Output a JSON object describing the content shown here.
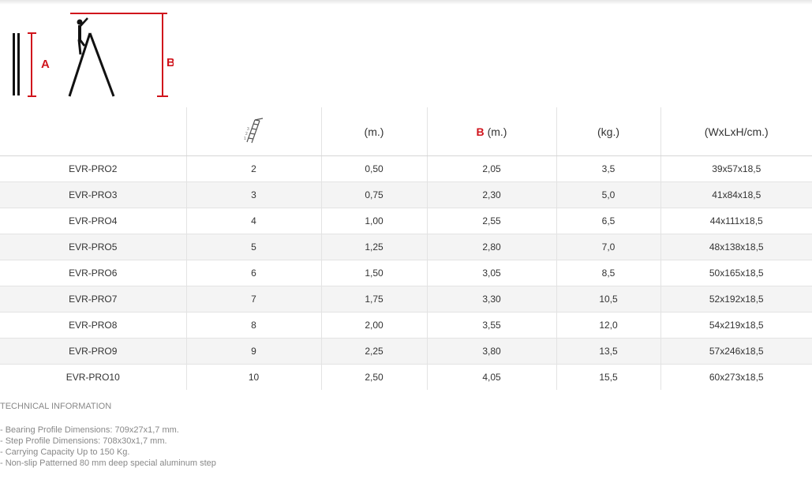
{
  "diagram": {
    "label_a": "A",
    "label_b": "B",
    "accent_color": "#d0141c"
  },
  "table": {
    "headers": {
      "model": "",
      "steps_icon": "step-ladder-icon",
      "a_unit": "(m.)",
      "b_letter": "B",
      "b_unit": "(m.)",
      "weight": "(kg.)",
      "dimensions": "(WxLxH/cm.)"
    },
    "rows": [
      {
        "model": "EVR-PRO2",
        "steps": "2",
        "a": "0,50",
        "b": "2,05",
        "kg": "3,5",
        "dims": "39x57x18,5"
      },
      {
        "model": "EVR-PRO3",
        "steps": "3",
        "a": "0,75",
        "b": "2,30",
        "kg": "5,0",
        "dims": "41x84x18,5"
      },
      {
        "model": "EVR-PRO4",
        "steps": "4",
        "a": "1,00",
        "b": "2,55",
        "kg": "6,5",
        "dims": "44x111x18,5"
      },
      {
        "model": "EVR-PRO5",
        "steps": "5",
        "a": "1,25",
        "b": "2,80",
        "kg": "7,0",
        "dims": "48x138x18,5"
      },
      {
        "model": "EVR-PRO6",
        "steps": "6",
        "a": "1,50",
        "b": "3,05",
        "kg": "8,5",
        "dims": "50x165x18,5"
      },
      {
        "model": "EVR-PRO7",
        "steps": "7",
        "a": "1,75",
        "b": "3,30",
        "kg": "10,5",
        "dims": "52x192x18,5"
      },
      {
        "model": "EVR-PRO8",
        "steps": "8",
        "a": "2,00",
        "b": "3,55",
        "kg": "12,0",
        "dims": "54x219x18,5"
      },
      {
        "model": "EVR-PRO9",
        "steps": "9",
        "a": "2,25",
        "b": "3,80",
        "kg": "13,5",
        "dims": "57x246x18,5"
      },
      {
        "model": "EVR-PRO10",
        "steps": "10",
        "a": "2,50",
        "b": "4,05",
        "kg": "15,5",
        "dims": "60x273x18,5"
      }
    ]
  },
  "technical": {
    "title": "TECHNICAL INFORMATION",
    "items": [
      "- Bearing Profile Dimensions: 709x27x1,7 mm.",
      "- Step Profile Dimensions: 708x30x1,7 mm.",
      "- Carrying Capacity Up to 150 Kg.",
      "- Non-slip Patterned 80 mm deep special aluminum step"
    ]
  }
}
